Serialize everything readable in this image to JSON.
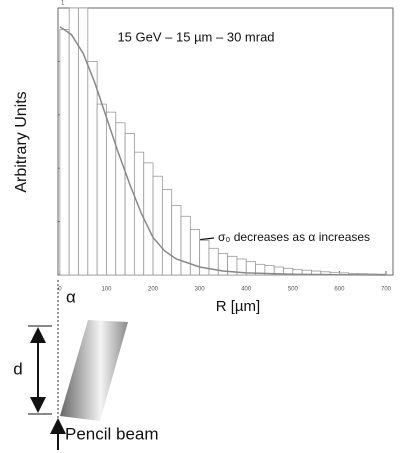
{
  "chart_data": {
    "type": "histogram",
    "annotation_top": "15 GeV – 15 µm – 30 mrad",
    "ylabel": "Arbitrary Units",
    "xlabel": "R [µm]",
    "annotation_arrow": "σ₀ decreases as α increases",
    "bins": [
      0,
      20,
      40,
      60,
      80,
      100,
      120,
      140,
      160,
      180,
      200,
      220,
      240,
      260,
      280,
      300,
      320,
      340,
      360,
      380,
      400,
      420,
      440,
      460,
      480,
      500,
      520,
      540,
      560,
      580,
      600,
      620,
      640,
      660,
      680,
      700
    ],
    "values": [
      0.92,
      1.0,
      1.0,
      0.8,
      0.64,
      0.61,
      0.57,
      0.53,
      0.46,
      0.42,
      0.37,
      0.32,
      0.26,
      0.22,
      0.17,
      0.13,
      0.1,
      0.08,
      0.07,
      0.06,
      0.05,
      0.04,
      0.035,
      0.03,
      0.025,
      0.02,
      0.018,
      0.015,
      0.012,
      0.01,
      0.008,
      0.006,
      0.005,
      0.004,
      0.003
    ],
    "color": "#999999",
    "curve": {
      "x": [
        0,
        25,
        50,
        75,
        100,
        125,
        150,
        175,
        200,
        225,
        250,
        300,
        350,
        400,
        500,
        600,
        700
      ],
      "values": [
        0.93,
        0.9,
        0.83,
        0.72,
        0.59,
        0.46,
        0.34,
        0.23,
        0.14,
        0.09,
        0.06,
        0.03,
        0.015,
        0.008,
        0.003,
        0.001,
        0
      ],
      "color": "#888888"
    },
    "xlim": [
      -4,
      715
    ],
    "ylim": [
      0,
      1
    ],
    "xticks": [
      0,
      100,
      200,
      300,
      400,
      500,
      600,
      700
    ],
    "yticks": [
      0,
      0.2,
      0.4,
      0.6,
      0.8,
      1
    ]
  },
  "diagram": {
    "angle_label": "α",
    "distance_label": "d",
    "beam_label": "Pencil beam"
  }
}
